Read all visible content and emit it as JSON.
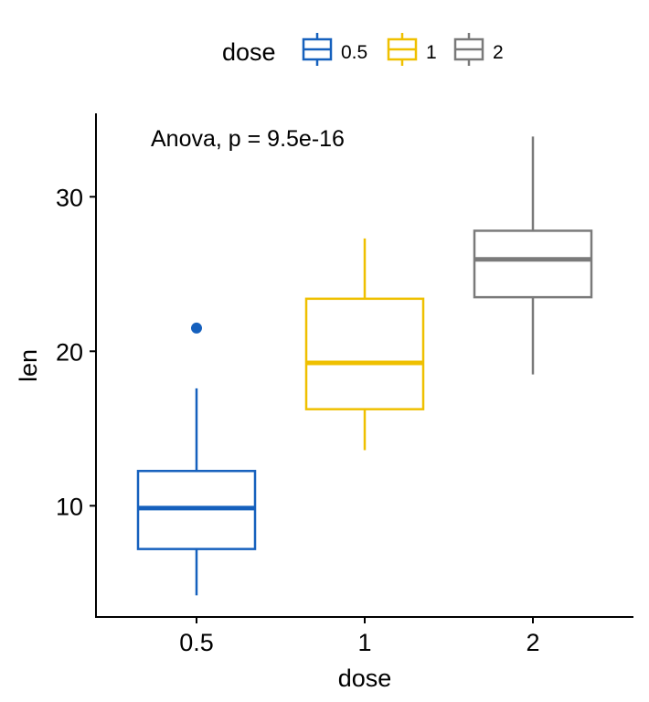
{
  "chart_data": {
    "type": "box",
    "xlabel": "dose",
    "ylabel": "len",
    "ylim": [
      2.8,
      35.4
    ],
    "yticks": [
      10,
      20,
      30
    ],
    "categories": [
      "0.5",
      "1",
      "2"
    ],
    "annotation": "Anova, p = 9.5e-16",
    "legend": {
      "title": "dose",
      "position": "top"
    },
    "grid": false,
    "series": [
      {
        "name": "0.5",
        "color": "#1560BD",
        "whisker_low": 4.2,
        "q1": 7.2,
        "median": 9.85,
        "q3": 12.25,
        "whisker_high": 17.6,
        "outliers": [
          21.5
        ]
      },
      {
        "name": "1",
        "color": "#EFC000",
        "whisker_low": 13.6,
        "q1": 16.25,
        "median": 19.25,
        "q3": 23.4,
        "whisker_high": 27.3,
        "outliers": []
      },
      {
        "name": "2",
        "color": "#7A7A7A",
        "whisker_low": 18.5,
        "q1": 23.5,
        "median": 25.95,
        "q3": 27.8,
        "whisker_high": 33.9,
        "outliers": []
      }
    ]
  }
}
